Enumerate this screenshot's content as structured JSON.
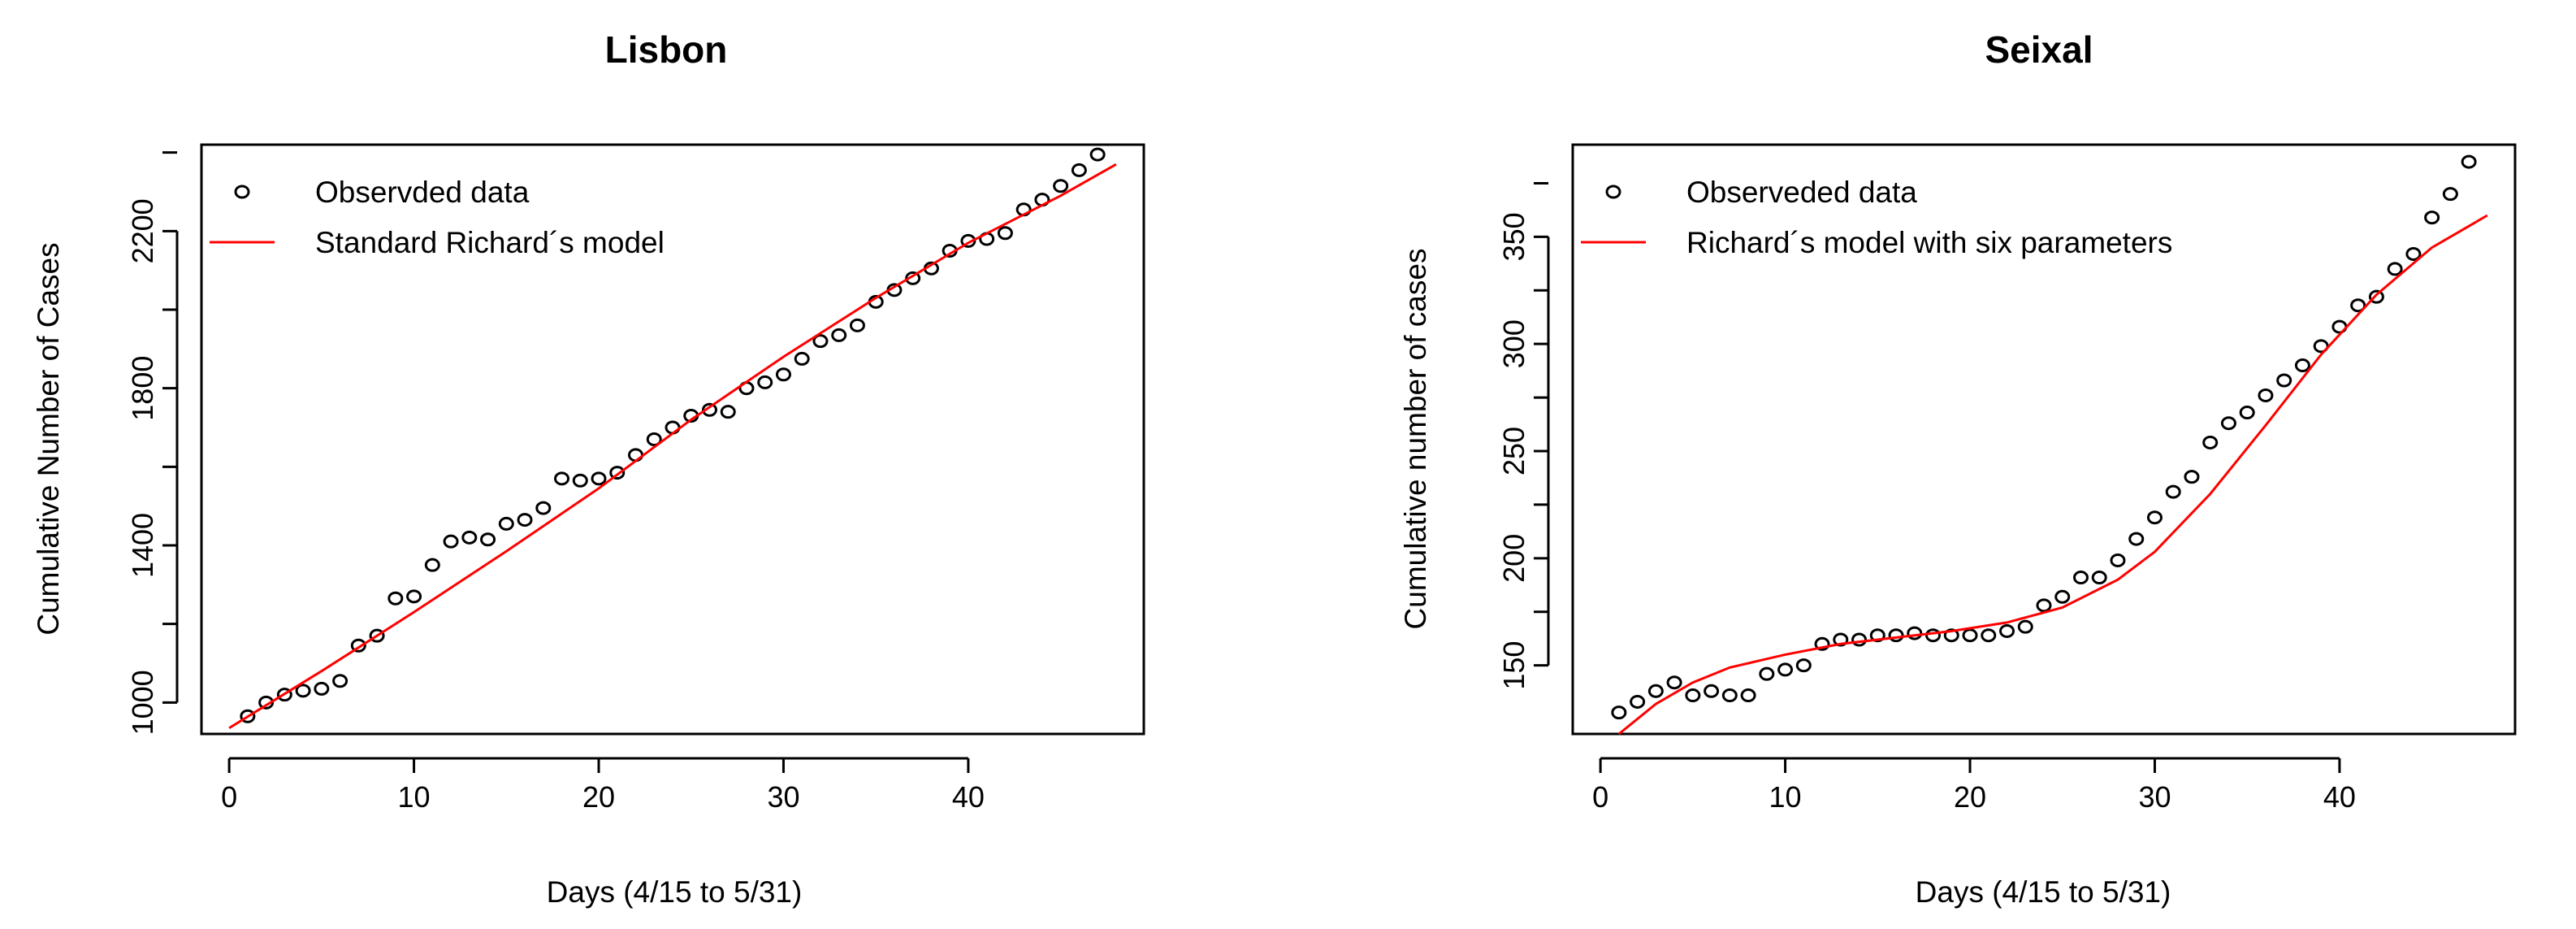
{
  "chart_data": [
    {
      "type": "scatter",
      "title": "Lisbon",
      "xlabel": "Days (4/15 to 5/31)",
      "ylabel": "Cumulative Number of Cases",
      "xlim": [
        -1.5,
        49.5
      ],
      "ylim": [
        920,
        2420
      ],
      "xticks": [
        "0",
        "10",
        "20",
        "30",
        "40"
      ],
      "yticks": [
        "1000",
        "1400",
        "1800",
        "2200"
      ],
      "legend_position": "top-left",
      "series": [
        {
          "name": "Observded data",
          "kind": "points",
          "marker": "open-circle",
          "color": "#000000",
          "x": [
            1,
            2,
            3,
            4,
            5,
            6,
            7,
            8,
            9,
            10,
            11,
            12,
            13,
            14,
            15,
            16,
            17,
            18,
            19,
            20,
            21,
            22,
            23,
            24,
            25,
            26,
            27,
            28,
            29,
            30,
            31,
            32,
            33,
            34,
            35,
            36,
            37,
            38,
            39,
            40,
            41,
            42,
            43,
            44,
            45,
            46,
            47
          ],
          "y": [
            965,
            1000,
            1020,
            1030,
            1035,
            1055,
            1145,
            1170,
            1265,
            1270,
            1350,
            1410,
            1420,
            1415,
            1455,
            1465,
            1495,
            1570,
            1565,
            1570,
            1585,
            1630,
            1670,
            1700,
            1730,
            1745,
            1740,
            1800,
            1815,
            1835,
            1875,
            1920,
            1935,
            1960,
            2020,
            2050,
            2080,
            2105,
            2150,
            2175,
            2180,
            2195,
            2255,
            2280,
            2315,
            2355,
            2395
          ]
        },
        {
          "name": "Standard Richard´s model",
          "kind": "line",
          "color": "#ff0000",
          "x": [
            0,
            5,
            10,
            15,
            20,
            25,
            30,
            35,
            40,
            45,
            48
          ],
          "y": [
            935,
            1080,
            1230,
            1385,
            1545,
            1720,
            1880,
            2030,
            2170,
            2290,
            2370
          ]
        }
      ]
    },
    {
      "type": "scatter",
      "title": "Seixal",
      "xlabel": "Days (4/15 to 5/31)",
      "ylabel": "Cumulative number of cases",
      "xlim": [
        -1.5,
        49.5
      ],
      "ylim": [
        118,
        393
      ],
      "xticks": [
        "0",
        "10",
        "20",
        "30",
        "40"
      ],
      "yticks": [
        "150",
        "200",
        "250",
        "300",
        "350"
      ],
      "legend_position": "top-left",
      "series": [
        {
          "name": "Observeded data",
          "kind": "points",
          "marker": "open-circle",
          "color": "#000000",
          "x": [
            1,
            2,
            3,
            4,
            5,
            6,
            7,
            8,
            9,
            10,
            11,
            12,
            13,
            14,
            15,
            16,
            17,
            18,
            19,
            20,
            21,
            22,
            23,
            24,
            25,
            26,
            27,
            28,
            29,
            30,
            31,
            32,
            33,
            34,
            35,
            36,
            37,
            38,
            39,
            40,
            41,
            42,
            43,
            44,
            45,
            46,
            47
          ],
          "y": [
            128,
            133,
            138,
            142,
            136,
            138,
            136,
            136,
            146,
            148,
            150,
            160,
            162,
            162,
            164,
            164,
            165,
            164,
            164,
            164,
            164,
            166,
            168,
            178,
            182,
            191,
            191,
            199,
            209,
            219,
            231,
            238,
            254,
            263,
            268,
            276,
            283,
            290,
            299,
            308,
            318,
            322,
            335,
            342,
            359,
            370,
            385
          ]
        },
        {
          "name": "Richard´s model with six parameters",
          "kind": "line",
          "color": "#ff0000",
          "x": [
            1,
            3,
            5,
            7,
            10,
            13,
            16,
            19,
            22,
            25,
            28,
            30,
            33,
            36,
            39,
            42,
            45,
            48
          ],
          "y": [
            118,
            132,
            142,
            149,
            155,
            160,
            163,
            166,
            170,
            177,
            190,
            203,
            230,
            262,
            295,
            323,
            345,
            360
          ]
        }
      ]
    }
  ]
}
